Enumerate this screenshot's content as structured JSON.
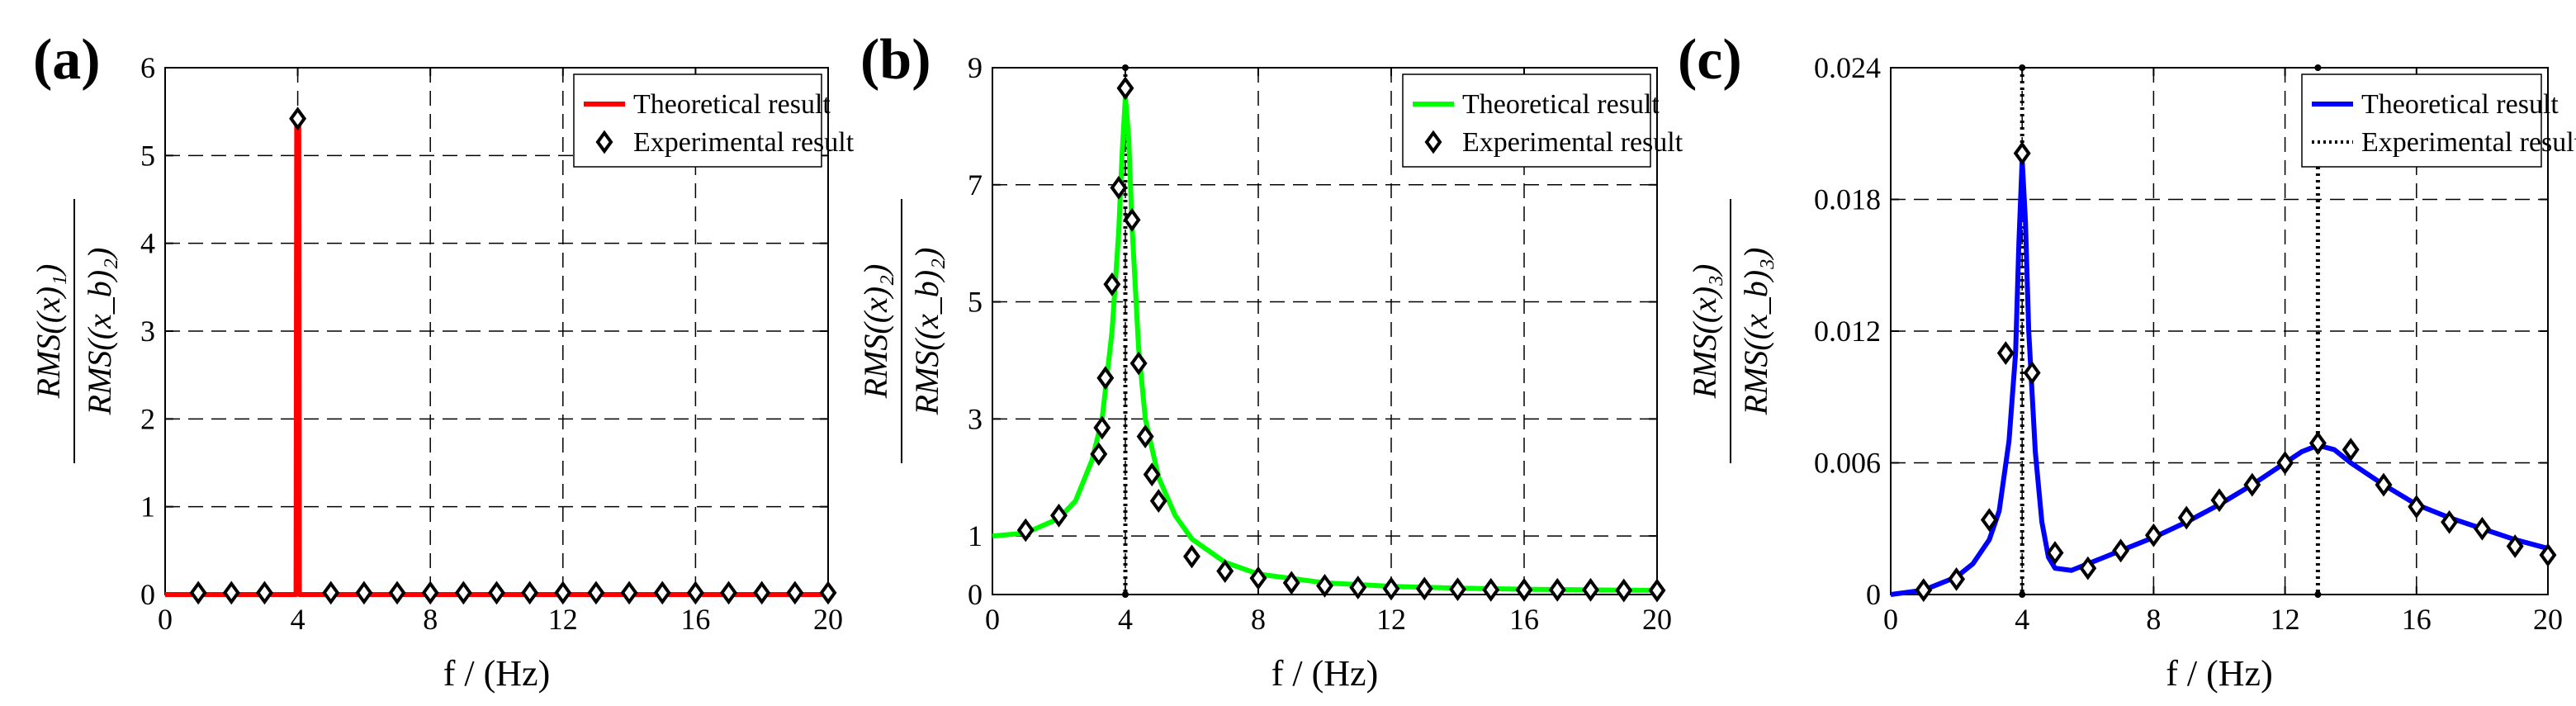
{
  "chart_data": [
    {
      "panel_label": "(a)",
      "type": "line",
      "xlabel": "f / (Hz)",
      "ylabel_numerator": "RMS((x)₁)",
      "ylabel_denominator": "RMS((x_b)₂)",
      "xlim": [
        0,
        20
      ],
      "ylim": [
        0,
        6
      ],
      "xticks": [
        0,
        4,
        8,
        12,
        16,
        20
      ],
      "yticks": [
        0,
        1,
        2,
        3,
        4,
        5,
        6
      ],
      "xtick_labels": [
        "0",
        "4",
        "8",
        "12",
        "16",
        "20"
      ],
      "ytick_labels": [
        "0",
        "1",
        "2",
        "3",
        "4",
        "5",
        "6"
      ],
      "grid": true,
      "legend_position": "top-right",
      "vline_x": null,
      "series": [
        {
          "name": "Theoretical result",
          "kind": "line",
          "color": "#ff0000",
          "x": [
            0,
            3.95,
            3.97,
            4.0,
            4.03,
            4.05,
            20
          ],
          "y": [
            0,
            0,
            5.4,
            5.45,
            5.4,
            0,
            0
          ]
        },
        {
          "name": "Experimental result",
          "kind": "diamond",
          "color": "#000000",
          "x": [
            1,
            2,
            3,
            4,
            5,
            6,
            7,
            8,
            9,
            10,
            11,
            12,
            13,
            14,
            15,
            16,
            17,
            18,
            19,
            20
          ],
          "y": [
            0.02,
            0.02,
            0.02,
            5.42,
            0.02,
            0.02,
            0.02,
            0.02,
            0.02,
            0.02,
            0.02,
            0.02,
            0.02,
            0.02,
            0.02,
            0.02,
            0.02,
            0.02,
            0.02,
            0.02
          ]
        }
      ]
    },
    {
      "panel_label": "(b)",
      "type": "line",
      "xlabel": "f / (Hz)",
      "ylabel_numerator": "RMS((x)₂)",
      "ylabel_denominator": "RMS((x_b)₂)",
      "xlim": [
        0,
        20
      ],
      "ylim": [
        0,
        9
      ],
      "xticks": [
        0,
        4,
        8,
        12,
        16,
        20
      ],
      "yticks": [
        0,
        1,
        3,
        5,
        7,
        9
      ],
      "xtick_labels": [
        "0",
        "4",
        "8",
        "12",
        "16",
        "20"
      ],
      "ytick_labels": [
        "0",
        "1",
        "3",
        "5",
        "7",
        "9"
      ],
      "grid": true,
      "legend_position": "top-right",
      "vline_x": 4,
      "series": [
        {
          "name": "Theoretical result",
          "kind": "line",
          "color": "#00ff00",
          "x": [
            0,
            1,
            2,
            2.5,
            3,
            3.3,
            3.6,
            3.8,
            3.9,
            4.0,
            4.1,
            4.2,
            4.4,
            4.6,
            5.0,
            5.5,
            6,
            7,
            8,
            10,
            12,
            14,
            16,
            18,
            20
          ],
          "y": [
            1.0,
            1.05,
            1.3,
            1.6,
            2.3,
            3.0,
            4.5,
            6.2,
            7.5,
            8.5,
            7.8,
            6.3,
            4.2,
            3.0,
            2.0,
            1.35,
            0.95,
            0.55,
            0.35,
            0.2,
            0.14,
            0.11,
            0.09,
            0.08,
            0.07
          ]
        },
        {
          "name": "Experimental result",
          "kind": "diamond",
          "color": "#000000",
          "x": [
            1,
            2,
            3.2,
            3.3,
            3.4,
            3.6,
            3.8,
            4.0,
            4.2,
            4.4,
            4.6,
            4.8,
            5,
            6,
            7,
            8,
            9,
            10,
            11,
            12,
            13,
            14,
            15,
            16,
            17,
            18,
            19,
            20
          ],
          "y": [
            1.1,
            1.35,
            2.4,
            2.85,
            3.7,
            5.3,
            6.95,
            8.65,
            6.4,
            3.95,
            2.7,
            2.05,
            1.6,
            0.65,
            0.4,
            0.28,
            0.2,
            0.15,
            0.12,
            0.1,
            0.1,
            0.09,
            0.08,
            0.08,
            0.08,
            0.08,
            0.07,
            0.07
          ]
        }
      ]
    },
    {
      "panel_label": "(c)",
      "type": "line",
      "xlabel": "f / (Hz)",
      "ylabel_numerator": "RMS((x)₃)",
      "ylabel_denominator": "RMS((x_b)₃)",
      "xlim": [
        0,
        20
      ],
      "ylim": [
        0,
        0.024
      ],
      "xticks": [
        0,
        4,
        8,
        12,
        16,
        20
      ],
      "yticks": [
        0,
        0.006,
        0.012,
        0.018,
        0.024
      ],
      "xtick_labels": [
        "0",
        "4",
        "8",
        "12",
        "16",
        "20"
      ],
      "ytick_labels": [
        "0",
        "0.006",
        "0.012",
        "0.018",
        "0.024"
      ],
      "grid": true,
      "legend_position": "top-right",
      "vline_x": [
        4,
        13
      ],
      "series": [
        {
          "name": "Theoretical result",
          "kind": "line",
          "color": "#0000ff",
          "x": [
            0,
            1,
            2,
            2.5,
            3,
            3.3,
            3.6,
            3.8,
            3.9,
            4.0,
            4.1,
            4.2,
            4.4,
            4.6,
            4.8,
            5,
            5.5,
            6,
            7,
            8,
            9,
            10,
            11,
            12,
            12.5,
            13,
            13.5,
            14,
            15,
            16,
            17,
            18,
            19,
            20
          ],
          "y": [
            0,
            0.0002,
            0.0008,
            0.0014,
            0.0025,
            0.0038,
            0.007,
            0.011,
            0.016,
            0.0198,
            0.017,
            0.012,
            0.0065,
            0.0033,
            0.0017,
            0.0012,
            0.0011,
            0.0014,
            0.002,
            0.0026,
            0.0033,
            0.0041,
            0.005,
            0.006,
            0.0065,
            0.0068,
            0.0066,
            0.006,
            0.005,
            0.0041,
            0.0035,
            0.003,
            0.0025,
            0.0021
          ]
        },
        {
          "name": "Experimental result",
          "kind": "diamond-dotted",
          "color": "#000000",
          "x": [
            1,
            2,
            3,
            3.5,
            4,
            4.3,
            5,
            6,
            7,
            8,
            9,
            10,
            11,
            12,
            13,
            14,
            15,
            16,
            17,
            18,
            19,
            20
          ],
          "y": [
            0.0002,
            0.0007,
            0.0034,
            0.011,
            0.0201,
            0.0101,
            0.0019,
            0.0012,
            0.002,
            0.0027,
            0.0035,
            0.0043,
            0.005,
            0.006,
            0.0069,
            0.0066,
            0.005,
            0.004,
            0.0033,
            0.003,
            0.0022,
            0.0018
          ]
        }
      ]
    }
  ]
}
